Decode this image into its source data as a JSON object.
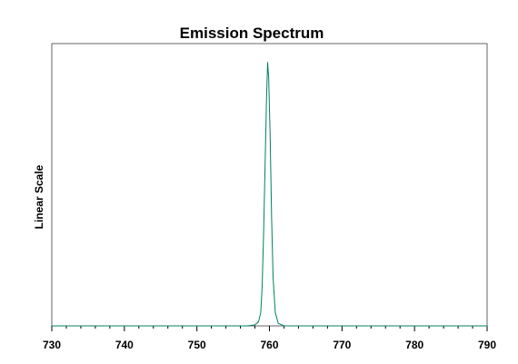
{
  "chart_data": {
    "type": "line",
    "title": "Emission Spectrum",
    "xlabel": "",
    "ylabel": "Linear Scale",
    "xlim": [
      730,
      790
    ],
    "ylim": [
      0,
      1.05
    ],
    "x_ticks": [
      730,
      740,
      750,
      760,
      770,
      780,
      790
    ],
    "grid": false,
    "legend": "none",
    "series": [
      {
        "color": "#008060",
        "x": [
          730,
          755,
          757,
          758,
          758.5,
          758.8,
          759.0,
          759.2,
          759.4,
          759.6,
          759.75,
          759.9,
          760.1,
          760.3,
          760.5,
          760.8,
          761.2,
          762,
          765,
          790
        ],
        "y": [
          0,
          0,
          0,
          0.004,
          0.015,
          0.05,
          0.15,
          0.35,
          0.6,
          0.85,
          0.98,
          0.92,
          0.7,
          0.4,
          0.18,
          0.05,
          0.01,
          0,
          0,
          0
        ]
      }
    ]
  }
}
